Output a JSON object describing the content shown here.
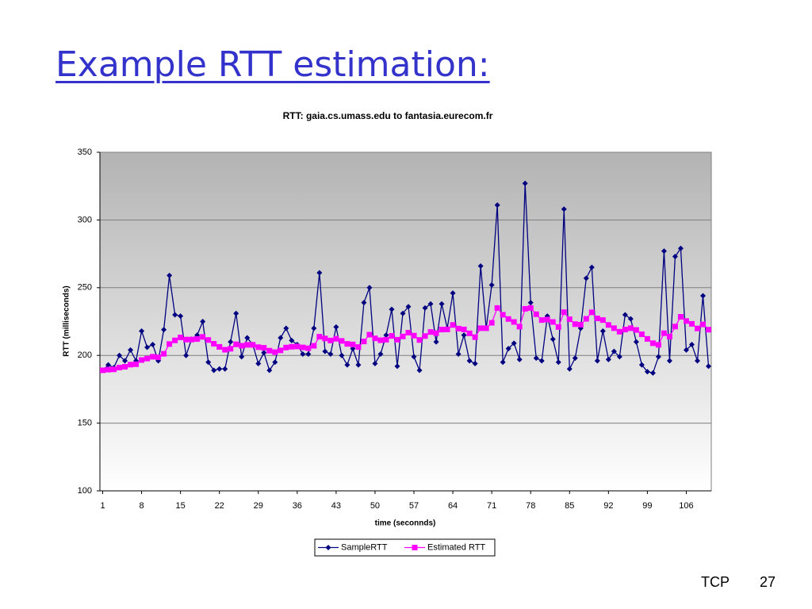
{
  "title": "Example RTT estimation:",
  "footer": {
    "section": "TCP",
    "page": "27"
  },
  "chart_data": {
    "type": "line",
    "title": "RTT: gaia.cs.umass.edu to fantasia.eurecom.fr",
    "x_label": "time (seconnds)",
    "y_label": "RTT (milliseconds)",
    "x": [
      1,
      2,
      3,
      4,
      5,
      6,
      7,
      8,
      9,
      10,
      11,
      12,
      13,
      14,
      15,
      16,
      17,
      18,
      19,
      20,
      21,
      22,
      23,
      24,
      25,
      26,
      27,
      28,
      29,
      30,
      31,
      32,
      33,
      34,
      35,
      36,
      37,
      38,
      39,
      40,
      41,
      42,
      43,
      44,
      45,
      46,
      47,
      48,
      49,
      50,
      51,
      52,
      53,
      54,
      55,
      56,
      57,
      58,
      59,
      60,
      61,
      62,
      63,
      64,
      65,
      66,
      67,
      68,
      69,
      70,
      71,
      72,
      73,
      74,
      75,
      76,
      77,
      78,
      79,
      80,
      81,
      82,
      83,
      84,
      85,
      86,
      87,
      88,
      89,
      90,
      91,
      92,
      93,
      94,
      95,
      96,
      97,
      98,
      99,
      100,
      101,
      102,
      103,
      104,
      105,
      106,
      107,
      108,
      109,
      110
    ],
    "xlim": [
      0.5,
      110.5
    ],
    "xticks": [
      1,
      8,
      15,
      22,
      29,
      36,
      43,
      50,
      57,
      64,
      71,
      78,
      85,
      92,
      99,
      106
    ],
    "ylim": [
      100,
      350
    ],
    "yticks": [
      100,
      150,
      200,
      250,
      300,
      350
    ],
    "grid": true,
    "legend": "bottom",
    "series": [
      {
        "name": "SampleRTT",
        "color": "#000080",
        "marker": "diamond",
        "values": [
          189,
          193,
          191,
          200,
          196,
          204,
          196,
          218,
          206,
          208,
          196,
          219,
          259,
          230,
          229,
          200,
          212,
          215,
          225,
          195,
          189,
          190,
          190,
          210,
          231,
          199,
          213,
          208,
          194,
          202,
          189,
          195,
          213,
          220,
          211,
          208,
          201,
          201,
          220,
          261,
          203,
          201,
          221,
          200,
          193,
          205,
          193,
          239,
          250,
          194,
          201,
          215,
          234,
          192,
          231,
          236,
          199,
          189,
          235,
          238,
          210,
          238,
          220,
          246,
          201,
          215,
          196,
          194,
          266,
          220,
          252,
          311,
          195,
          205,
          209,
          197,
          327,
          239,
          198,
          196,
          229,
          212,
          195,
          308,
          190,
          198,
          220,
          257,
          265,
          196,
          218,
          197,
          203,
          199,
          230,
          227,
          210,
          193,
          188,
          187,
          199,
          277,
          196,
          273,
          279,
          204,
          208,
          196,
          244,
          192
        ]
      },
      {
        "name": "Estimated RTT",
        "color": "#ff00ff",
        "marker": "square",
        "values": [
          189,
          189.5,
          189.7,
          191.0,
          191.6,
          193.2,
          193.5,
          196.6,
          197.7,
          199.0,
          198.6,
          201.2,
          208.4,
          211.1,
          213.3,
          211.7,
          211.7,
          212.1,
          213.7,
          211.4,
          208.6,
          206.3,
          204.2,
          204.9,
          208.2,
          207.1,
          207.8,
          207.8,
          206.1,
          205.6,
          203.5,
          202.4,
          203.7,
          205.8,
          206.4,
          206.6,
          205.9,
          205.3,
          207.1,
          213.8,
          212.5,
          211.0,
          212.3,
          210.7,
          208.5,
          208.1,
          206.2,
          210.3,
          215.3,
          212.6,
          211.2,
          211.6,
          214.4,
          211.6,
          214.0,
          216.8,
          214.6,
          211.4,
          214.3,
          217.3,
          216.4,
          219.1,
          219.2,
          222.5,
          219.8,
          219.2,
          216.3,
          213.5,
          220.1,
          220.1,
          224.1,
          235.0,
          230.0,
          226.9,
          224.7,
          221.2,
          234.4,
          235.0,
          230.4,
          226.1,
          226.5,
          224.7,
          221.0,
          231.9,
          226.7,
          223.1,
          222.7,
          227.0,
          231.8,
          227.3,
          226.1,
          222.5,
          220.1,
          217.5,
          219.1,
          220.1,
          218.8,
          215.6,
          212.2,
          209.0,
          207.8,
          216.4,
          213.9,
          221.3,
          228.5,
          225.4,
          223.3,
          219.9,
          222.9,
          219.0
        ]
      }
    ]
  }
}
